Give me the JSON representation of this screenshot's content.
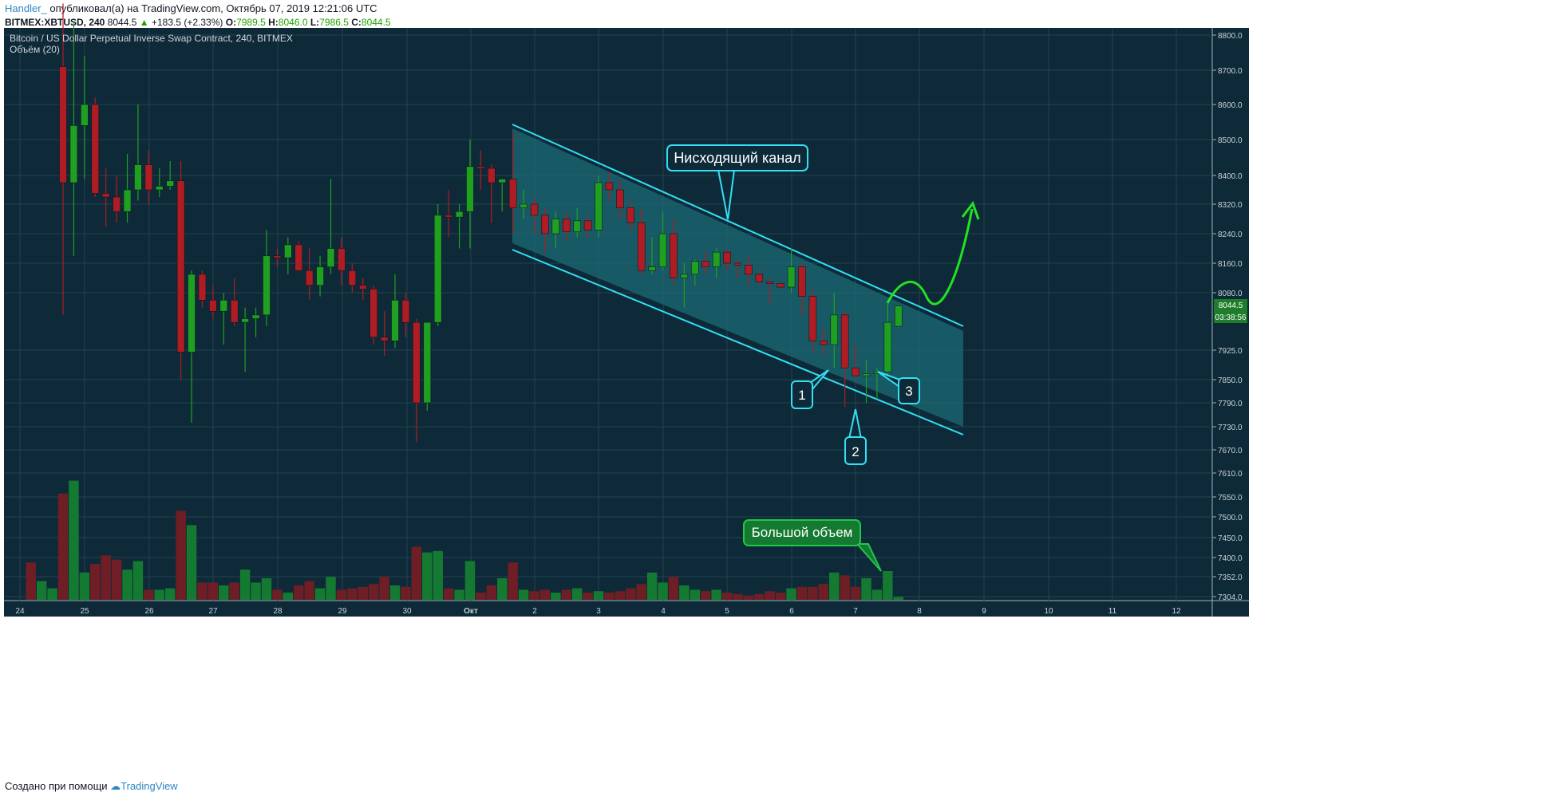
{
  "header": {
    "author": "Handler_",
    "published_text": "опубликовал(а) на TradingView.com, Октябрь 07, 2019 12:21:06 UTC",
    "symbol": "BITMEX:XBTUSD, 240",
    "last_price": "8044.5",
    "change": "+183.5 (+2.33%)",
    "o_label": "O:",
    "o_value": "7989.5",
    "h_label": "H:",
    "h_value": "8046.0",
    "l_label": "L:",
    "l_value": "7986.5",
    "c_label": "C:",
    "c_value": "8044.5"
  },
  "footer": {
    "created_text": "Создано при помощи",
    "brand": "TradingView"
  },
  "colors": {
    "background": "#0e2a38",
    "up": "#20a020",
    "down": "#b01c24",
    "vol_up": "#157a31",
    "vol_down": "#6e1e24",
    "channel_line": "#32e0f4",
    "channel_fill": "#1b6b74",
    "arrow": "#22e322",
    "grid": "#234250"
  },
  "chart_data": {
    "type": "candlestick",
    "title": "Bitcoin / US Dollar Perpetual Inverse Swap Contract, 240, BITMEX",
    "volume_label": "Объём (20)",
    "x_tick_labels": [
      "24",
      "25",
      "26",
      "27",
      "28",
      "29",
      "30",
      "Окт",
      "2",
      "3",
      "4",
      "5",
      "6",
      "7",
      "8",
      "9",
      "10",
      "11",
      "12"
    ],
    "y_tick_labels": [
      "8800.0",
      "8700.0",
      "8600.0",
      "8500.0",
      "8400.0",
      "8320.0",
      "8240.0",
      "8160.0",
      "8080.0",
      "7925.0",
      "7850.0",
      "7790.0",
      "7730.0",
      "7670.0",
      "7610.0",
      "7550.0",
      "7500.0",
      "7450.0",
      "7400.0",
      "7352.0",
      "7304.0"
    ],
    "y_tick_values": [
      8800,
      8700,
      8600,
      8500,
      8400,
      8320,
      8240,
      8160,
      8080,
      7925,
      7850,
      7790,
      7730,
      7670,
      7610,
      7550,
      7500,
      7450,
      7400,
      7352,
      7304
    ],
    "last_price_label": "8044.5",
    "countdown_label": "03:38:56",
    "candles": [
      {
        "o": 8710,
        "h": 8890,
        "l": 8020,
        "c": 8380,
        "v": 0.74
      },
      {
        "o": 8380,
        "h": 8840,
        "l": 8180,
        "c": 8540,
        "v": 0.83
      },
      {
        "o": 8540,
        "h": 8740,
        "l": 8390,
        "c": 8600,
        "v": 0.19
      },
      {
        "o": 8600,
        "h": 8620,
        "l": 8340,
        "c": 8350,
        "v": 0.25
      },
      {
        "o": 8350,
        "h": 8420,
        "l": 8260,
        "c": 8340,
        "v": 0.31
      },
      {
        "o": 8340,
        "h": 8400,
        "l": 8270,
        "c": 8300,
        "v": 0.28
      },
      {
        "o": 8300,
        "h": 8460,
        "l": 8270,
        "c": 8360,
        "v": 0.21
      },
      {
        "o": 8360,
        "h": 8600,
        "l": 8330,
        "c": 8430,
        "v": 0.27
      },
      {
        "o": 8430,
        "h": 8470,
        "l": 8320,
        "c": 8360,
        "v": 0.07
      },
      {
        "o": 8360,
        "h": 8420,
        "l": 8340,
        "c": 8370,
        "v": 0.07
      },
      {
        "o": 8370,
        "h": 8440,
        "l": 8360,
        "c": 8385,
        "v": 0.08
      },
      {
        "o": 8385,
        "h": 8440,
        "l": 7850,
        "c": 7920,
        "v": 0.62
      },
      {
        "o": 7920,
        "h": 8140,
        "l": 7740,
        "c": 8130,
        "v": 0.52
      },
      {
        "o": 8130,
        "h": 8140,
        "l": 8040,
        "c": 8060,
        "v": 0.12
      },
      {
        "o": 8060,
        "h": 8100,
        "l": 8010,
        "c": 8030,
        "v": 0.12
      },
      {
        "o": 8030,
        "h": 8080,
        "l": 7940,
        "c": 8060,
        "v": 0.1
      },
      {
        "o": 8060,
        "h": 8120,
        "l": 7990,
        "c": 8000,
        "v": 0.12
      },
      {
        "o": 8000,
        "h": 8040,
        "l": 7870,
        "c": 8010,
        "v": 0.21
      },
      {
        "o": 8010,
        "h": 8040,
        "l": 7960,
        "c": 8020,
        "v": 0.12
      },
      {
        "o": 8020,
        "h": 8250,
        "l": 7990,
        "c": 8180,
        "v": 0.15
      },
      {
        "o": 8180,
        "h": 8200,
        "l": 8150,
        "c": 8175,
        "v": 0.07
      },
      {
        "o": 8175,
        "h": 8230,
        "l": 8130,
        "c": 8210,
        "v": 0.05
      },
      {
        "o": 8210,
        "h": 8220,
        "l": 8140,
        "c": 8140,
        "v": 0.1
      },
      {
        "o": 8140,
        "h": 8200,
        "l": 8060,
        "c": 8100,
        "v": 0.13
      },
      {
        "o": 8100,
        "h": 8180,
        "l": 8070,
        "c": 8150,
        "v": 0.08
      },
      {
        "o": 8150,
        "h": 8390,
        "l": 8130,
        "c": 8200,
        "v": 0.16
      },
      {
        "o": 8200,
        "h": 8230,
        "l": 8100,
        "c": 8140,
        "v": 0.07
      },
      {
        "o": 8140,
        "h": 8160,
        "l": 8080,
        "c": 8100,
        "v": 0.08
      },
      {
        "o": 8100,
        "h": 8120,
        "l": 8060,
        "c": 8090,
        "v": 0.09
      },
      {
        "o": 8090,
        "h": 8100,
        "l": 7940,
        "c": 7960,
        "v": 0.11
      },
      {
        "o": 7960,
        "h": 8030,
        "l": 7910,
        "c": 7950,
        "v": 0.16
      },
      {
        "o": 7950,
        "h": 8130,
        "l": 7930,
        "c": 8060,
        "v": 0.1
      },
      {
        "o": 8060,
        "h": 8080,
        "l": 7960,
        "c": 8000,
        "v": 0.09
      },
      {
        "o": 8000,
        "h": 8010,
        "l": 7690,
        "c": 7790,
        "v": 0.37
      },
      {
        "o": 7790,
        "h": 8000,
        "l": 7770,
        "c": 8000,
        "v": 0.33
      },
      {
        "o": 8000,
        "h": 8320,
        "l": 7990,
        "c": 8290,
        "v": 0.34
      },
      {
        "o": 8290,
        "h": 8360,
        "l": 8230,
        "c": 8285,
        "v": 0.08
      },
      {
        "o": 8285,
        "h": 8320,
        "l": 8200,
        "c": 8300,
        "v": 0.07
      },
      {
        "o": 8300,
        "h": 8500,
        "l": 8200,
        "c": 8425,
        "v": 0.27
      },
      {
        "o": 8425,
        "h": 8470,
        "l": 8360,
        "c": 8420,
        "v": 0.05
      },
      {
        "o": 8420,
        "h": 8430,
        "l": 8270,
        "c": 8380,
        "v": 0.1
      },
      {
        "o": 8380,
        "h": 8390,
        "l": 8300,
        "c": 8390,
        "v": 0.15
      },
      {
        "o": 8390,
        "h": 8520,
        "l": 8240,
        "c": 8310,
        "v": 0.26
      },
      {
        "o": 8310,
        "h": 8360,
        "l": 8280,
        "c": 8320,
        "v": 0.07
      },
      {
        "o": 8320,
        "h": 8340,
        "l": 8240,
        "c": 8290,
        "v": 0.06
      },
      {
        "o": 8290,
        "h": 8310,
        "l": 8190,
        "c": 8240,
        "v": 0.07
      },
      {
        "o": 8240,
        "h": 8300,
        "l": 8200,
        "c": 8280,
        "v": 0.05
      },
      {
        "o": 8280,
        "h": 8300,
        "l": 8220,
        "c": 8245,
        "v": 0.07
      },
      {
        "o": 8245,
        "h": 8310,
        "l": 8230,
        "c": 8275,
        "v": 0.08
      },
      {
        "o": 8275,
        "h": 8290,
        "l": 8230,
        "c": 8250,
        "v": 0.05
      },
      {
        "o": 8250,
        "h": 8400,
        "l": 8230,
        "c": 8380,
        "v": 0.06
      },
      {
        "o": 8380,
        "h": 8410,
        "l": 8330,
        "c": 8360,
        "v": 0.05
      },
      {
        "o": 8360,
        "h": 8390,
        "l": 8280,
        "c": 8310,
        "v": 0.06
      },
      {
        "o": 8310,
        "h": 8330,
        "l": 8250,
        "c": 8270,
        "v": 0.08
      },
      {
        "o": 8270,
        "h": 8310,
        "l": 8130,
        "c": 8140,
        "v": 0.11
      },
      {
        "o": 8140,
        "h": 8230,
        "l": 8130,
        "c": 8150,
        "v": 0.19
      },
      {
        "o": 8150,
        "h": 8300,
        "l": 8140,
        "c": 8240,
        "v": 0.12
      },
      {
        "o": 8240,
        "h": 8280,
        "l": 8100,
        "c": 8120,
        "v": 0.16
      },
      {
        "o": 8120,
        "h": 8160,
        "l": 8040,
        "c": 8130,
        "v": 0.1
      },
      {
        "o": 8130,
        "h": 8170,
        "l": 8100,
        "c": 8165,
        "v": 0.07
      },
      {
        "o": 8165,
        "h": 8190,
        "l": 8130,
        "c": 8150,
        "v": 0.06
      },
      {
        "o": 8150,
        "h": 8200,
        "l": 8120,
        "c": 8190,
        "v": 0.07
      },
      {
        "o": 8190,
        "h": 8200,
        "l": 8140,
        "c": 8160,
        "v": 0.05
      },
      {
        "o": 8160,
        "h": 8170,
        "l": 8120,
        "c": 8155,
        "v": 0.04
      },
      {
        "o": 8155,
        "h": 8180,
        "l": 8100,
        "c": 8130,
        "v": 0.03
      },
      {
        "o": 8130,
        "h": 8140,
        "l": 8100,
        "c": 8110,
        "v": 0.04
      },
      {
        "o": 8110,
        "h": 8120,
        "l": 8050,
        "c": 8105,
        "v": 0.06
      },
      {
        "o": 8105,
        "h": 8110,
        "l": 8090,
        "c": 8095,
        "v": 0.05
      },
      {
        "o": 8095,
        "h": 8200,
        "l": 8080,
        "c": 8150,
        "v": 0.08
      },
      {
        "o": 8150,
        "h": 8160,
        "l": 8020,
        "c": 8070,
        "v": 0.09
      },
      {
        "o": 8070,
        "h": 8090,
        "l": 7920,
        "c": 7950,
        "v": 0.09
      },
      {
        "o": 7950,
        "h": 7980,
        "l": 7910,
        "c": 7940,
        "v": 0.11
      },
      {
        "o": 7940,
        "h": 8080,
        "l": 7880,
        "c": 8020,
        "v": 0.19
      },
      {
        "o": 8020,
        "h": 8030,
        "l": 7780,
        "c": 7880,
        "v": 0.17
      },
      {
        "o": 7880,
        "h": 7940,
        "l": 7850,
        "c": 7860,
        "v": 0.09
      },
      {
        "o": 7860,
        "h": 7900,
        "l": 7790,
        "c": 7865,
        "v": 0.15
      },
      {
        "o": 7865,
        "h": 7880,
        "l": 7800,
        "c": 7870,
        "v": 0.07
      },
      {
        "o": 7870,
        "h": 8050,
        "l": 7860,
        "c": 8000,
        "v": 0.2
      },
      {
        "o": 7989.5,
        "h": 8046,
        "l": 7986.5,
        "c": 8044.5,
        "v": 0.02
      }
    ]
  },
  "annotations": {
    "channel_label": "Нисходящий канал",
    "volume_label": "Большой объем",
    "point_1": "1",
    "point_2": "2",
    "point_3": "3"
  }
}
